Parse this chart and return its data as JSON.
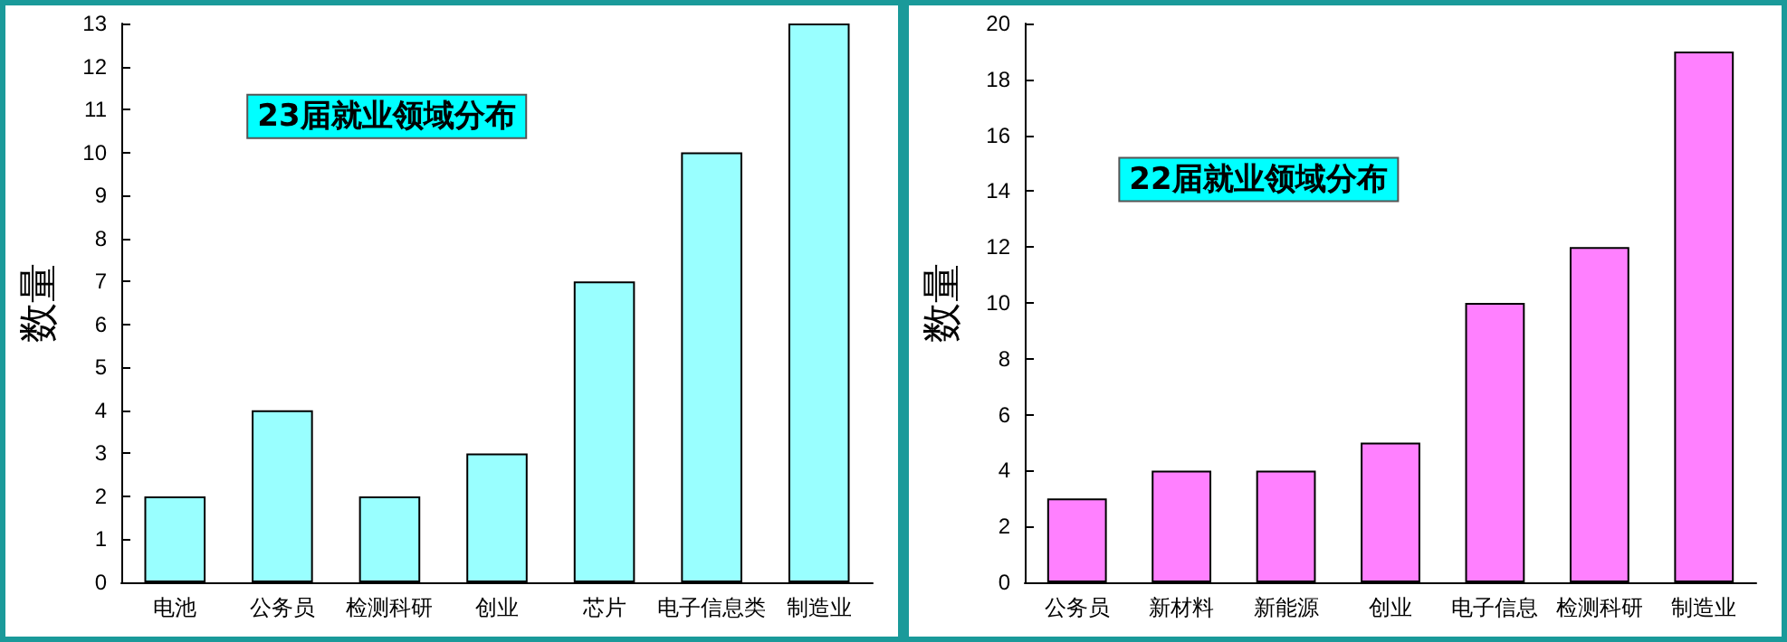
{
  "chart_data": [
    {
      "type": "bar",
      "title": "23届就业领域分布",
      "ylabel": "数量",
      "categories": [
        "电池",
        "公务员",
        "检测科研",
        "创业",
        "芯片",
        "电子信息类",
        "制造业"
      ],
      "series": [
        {
          "color": "#99ffff",
          "values": [
            2,
            4,
            2,
            3,
            7,
            10,
            13
          ]
        }
      ],
      "ylim": [
        0,
        13
      ],
      "yticks": [
        0,
        1,
        2,
        3,
        4,
        5,
        6,
        7,
        8,
        9,
        10,
        11,
        12,
        13
      ]
    },
    {
      "type": "bar",
      "title": "22届就业领域分布",
      "ylabel": "数量",
      "categories": [
        "公务员",
        "新材料",
        "新能源",
        "创业",
        "电子信息",
        "检测科研",
        "制造业"
      ],
      "series": [
        {
          "color": "#ff80ff",
          "values": [
            3,
            4,
            4,
            5,
            10,
            12,
            19
          ]
        }
      ],
      "ylim": [
        0,
        20
      ],
      "yticks": [
        0,
        2,
        4,
        6,
        8,
        10,
        12,
        14,
        16,
        18,
        20
      ]
    }
  ]
}
